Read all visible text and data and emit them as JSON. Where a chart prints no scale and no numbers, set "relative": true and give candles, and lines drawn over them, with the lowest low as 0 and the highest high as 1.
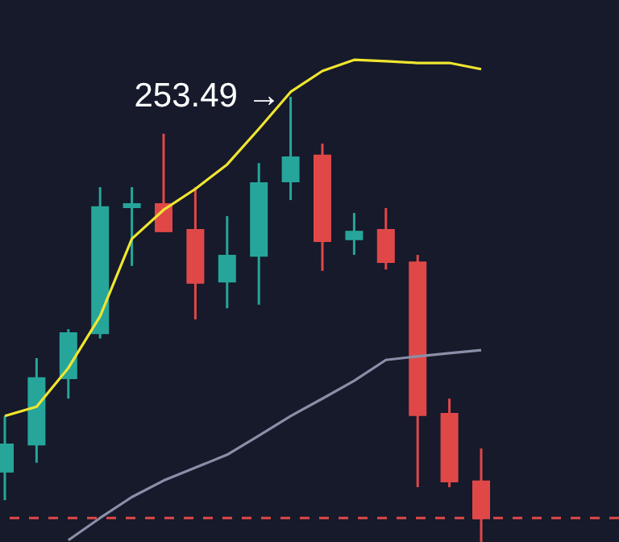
{
  "chart_data": {
    "type": "candlestick",
    "relative": true,
    "categories": [
      null,
      null,
      null,
      null,
      null,
      null,
      null,
      null,
      null,
      null,
      null,
      null,
      null,
      null,
      null,
      null
    ],
    "ohlc": [
      [
        0.156,
        0.283,
        0.094,
        0.221
      ],
      [
        0.217,
        0.413,
        0.178,
        0.37
      ],
      [
        0.366,
        0.478,
        0.322,
        0.471
      ],
      [
        0.467,
        0.797,
        0.457,
        0.754
      ],
      [
        0.75,
        0.797,
        0.62,
        0.761
      ],
      [
        0.761,
        0.917,
        0.696,
        0.696
      ],
      [
        0.703,
        0.797,
        0.5,
        0.58
      ],
      [
        0.583,
        0.732,
        0.525,
        0.645
      ],
      [
        0.641,
        0.851,
        0.533,
        0.808
      ],
      [
        0.808,
        1,
        0.768,
        0.866
      ],
      [
        0.87,
        0.895,
        0.609,
        0.674
      ],
      [
        0.678,
        0.739,
        0.645,
        0.699
      ],
      [
        0.703,
        0.75,
        0.612,
        0.627
      ],
      [
        0.63,
        0.645,
        0.123,
        0.283
      ],
      [
        0.29,
        0.322,
        0.123,
        0.134
      ],
      [
        0.138,
        0.21,
        0,
        0.051
      ]
    ],
    "colors": [
      "#26a69a",
      "#26a69a",
      "#26a69a",
      "#26a69a",
      "#26a69a",
      "#e04848",
      "#e04848",
      "#26a69a",
      "#26a69a",
      "#26a69a",
      "#e04848",
      "#26a69a",
      "#e04848",
      "#e04848",
      "#e04848",
      "#e04848"
    ],
    "series": [
      {
        "type": "line",
        "color": "#f0e530",
        "values": [
          0.283,
          0.304,
          0.391,
          0.507,
          0.681,
          0.746,
          0.793,
          0.848,
          0.928,
          1.011,
          1.058,
          1.083,
          1.08,
          1.076,
          1.076,
          1.062
        ]
      },
      {
        "type": "line",
        "color": "#8a8fa8",
        "values": [
          null,
          null,
          0.004,
          0.054,
          0.101,
          0.138,
          0.167,
          0.196,
          0.239,
          0.283,
          0.322,
          0.362,
          0.409,
          0.417,
          0.424,
          0.431
        ]
      }
    ],
    "ref_lines": [
      {
        "axis": "y",
        "value": 0.054,
        "color": "#e04848",
        "line_style": "dashed"
      }
    ],
    "annotations": [
      "253.49 →"
    ]
  }
}
